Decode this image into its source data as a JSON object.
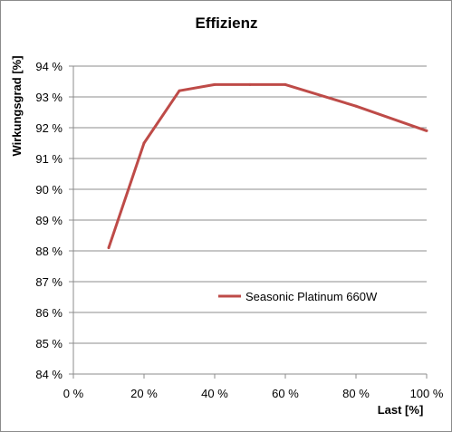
{
  "chart_data": {
    "type": "line",
    "title": "Effizienz",
    "xlabel": "Last [%]",
    "ylabel": "Wirkungsgrad [%]",
    "xlim": [
      0,
      100
    ],
    "ylim": [
      84,
      94
    ],
    "x_ticks": [
      "0 %",
      "20 %",
      "40 %",
      "60 %",
      "80 %",
      "100 %"
    ],
    "y_ticks": [
      "84 %",
      "85 %",
      "86 %",
      "87 %",
      "88 %",
      "89 %",
      "90 %",
      "91 %",
      "92 %",
      "93 %",
      "94 %"
    ],
    "grid": "horizontal",
    "legend_position": "right",
    "series": [
      {
        "name": "Seasonic Platinum 660W",
        "color": "#be4b48",
        "x": [
          10,
          20,
          30,
          40,
          50,
          60,
          80,
          100
        ],
        "y": [
          88.1,
          91.5,
          93.2,
          93.4,
          93.4,
          93.4,
          92.7,
          91.9
        ]
      }
    ]
  }
}
